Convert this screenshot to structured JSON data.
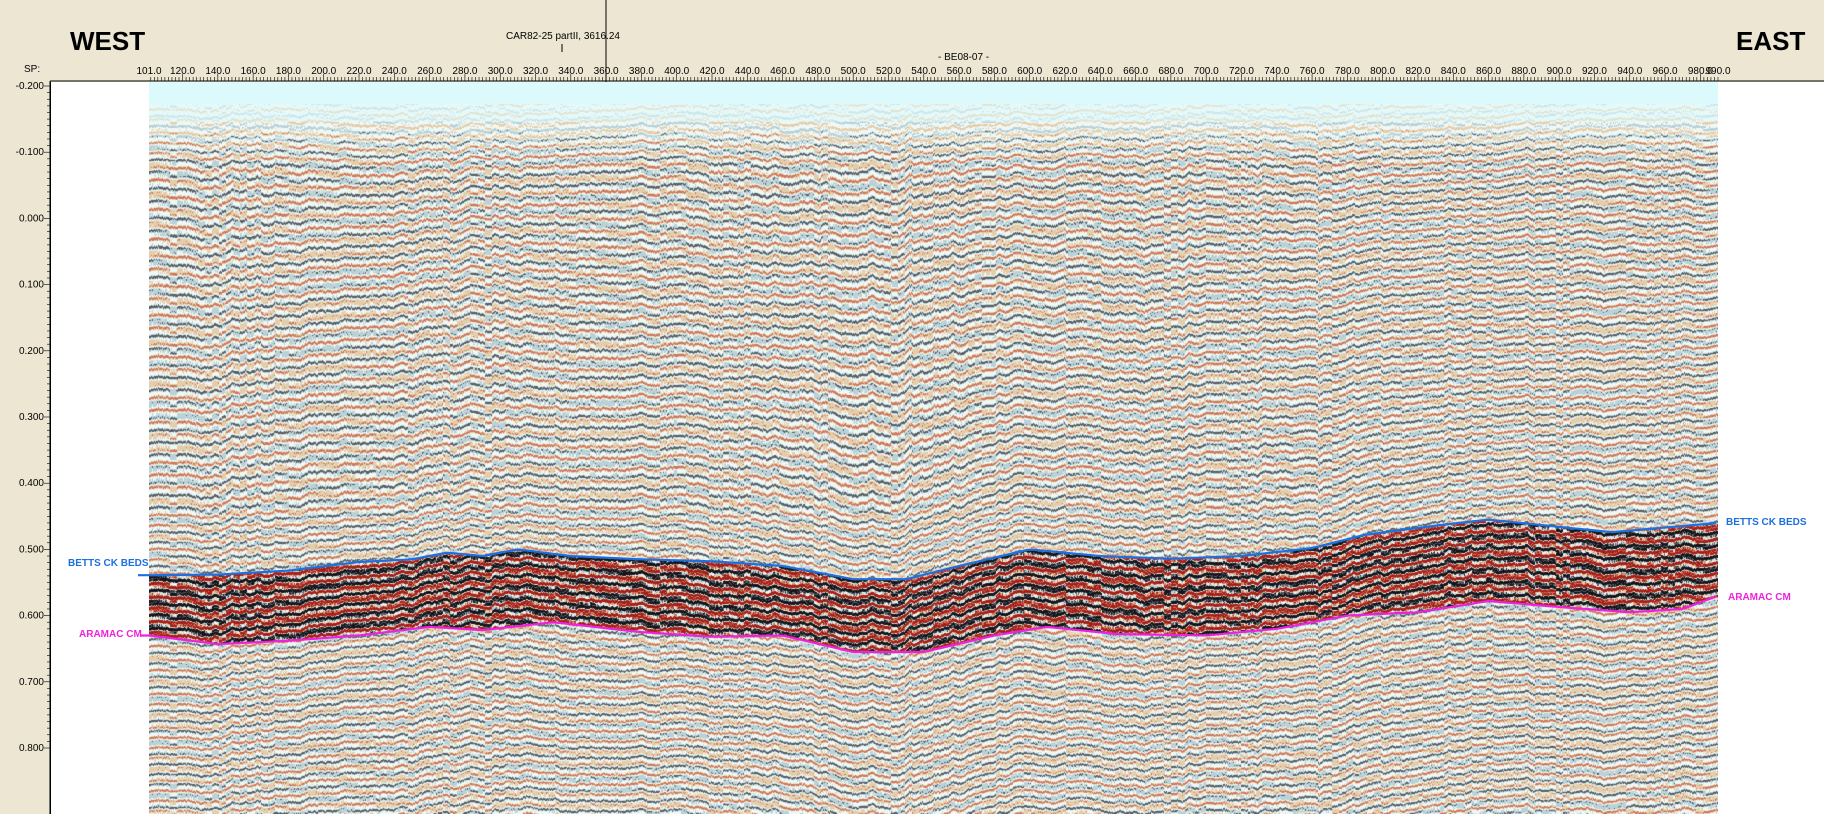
{
  "header": {
    "west": "WEST",
    "east": "EAST",
    "sp_label": "SP:",
    "crossline": "CAR82-25 partII, 3616.24",
    "line_name": "- BE08-07 -"
  },
  "sp_axis": [
    "101.0",
    "120.0",
    "140.0",
    "160.0",
    "180.0",
    "200.0",
    "220.0",
    "240.0",
    "260.0",
    "280.0",
    "300.0",
    "320.0",
    "340.0",
    "360.0",
    "380.0",
    "400.0",
    "420.0",
    "440.0",
    "460.0",
    "480.0",
    "500.0",
    "520.0",
    "540.0",
    "560.0",
    "580.0",
    "600.0",
    "620.0",
    "640.0",
    "660.0",
    "680.0",
    "700.0",
    "720.0",
    "740.0",
    "760.0",
    "780.0",
    "800.0",
    "820.0",
    "840.0",
    "860.0",
    "880.0",
    "900.0",
    "920.0",
    "940.0",
    "960.0",
    "980.0",
    "990.0"
  ],
  "time_axis": [
    "-0.200",
    "-0.100",
    "0.000",
    "0.100",
    "0.200",
    "0.300",
    "0.400",
    "0.500",
    "0.600",
    "0.700",
    "0.800"
  ],
  "horizons": [
    {
      "name": "BETTS CK BEDS",
      "color": "#1e6fe0",
      "points": [
        [
          101,
          0.539
        ],
        [
          140,
          0.538
        ],
        [
          180,
          0.532
        ],
        [
          220,
          0.519
        ],
        [
          250,
          0.515
        ],
        [
          270,
          0.505
        ],
        [
          290,
          0.51
        ],
        [
          310,
          0.5
        ],
        [
          340,
          0.51
        ],
        [
          380,
          0.515
        ],
        [
          420,
          0.518
        ],
        [
          460,
          0.525
        ],
        [
          500,
          0.545
        ],
        [
          530,
          0.545
        ],
        [
          560,
          0.525
        ],
        [
          600,
          0.5
        ],
        [
          640,
          0.51
        ],
        [
          680,
          0.514
        ],
        [
          720,
          0.51
        ],
        [
          760,
          0.498
        ],
        [
          790,
          0.478
        ],
        [
          830,
          0.464
        ],
        [
          860,
          0.455
        ],
        [
          900,
          0.466
        ],
        [
          930,
          0.474
        ],
        [
          960,
          0.467
        ],
        [
          990,
          0.46
        ]
      ]
    },
    {
      "name": "ARAMAC CM",
      "color": "#ee22dd",
      "points": [
        [
          101,
          0.63
        ],
        [
          140,
          0.643
        ],
        [
          180,
          0.638
        ],
        [
          220,
          0.63
        ],
        [
          260,
          0.617
        ],
        [
          290,
          0.622
        ],
        [
          330,
          0.61
        ],
        [
          380,
          0.625
        ],
        [
          420,
          0.632
        ],
        [
          460,
          0.63
        ],
        [
          500,
          0.655
        ],
        [
          540,
          0.655
        ],
        [
          580,
          0.63
        ],
        [
          610,
          0.617
        ],
        [
          650,
          0.628
        ],
        [
          700,
          0.63
        ],
        [
          740,
          0.62
        ],
        [
          780,
          0.6
        ],
        [
          820,
          0.595
        ],
        [
          860,
          0.578
        ],
        [
          900,
          0.587
        ],
        [
          940,
          0.595
        ],
        [
          970,
          0.59
        ],
        [
          990,
          0.57
        ]
      ]
    }
  ]
}
